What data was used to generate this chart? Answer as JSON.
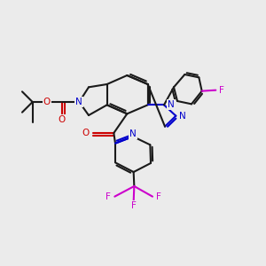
{
  "background_color": "#ebebeb",
  "bond_color": "#1a1a1a",
  "N_color": "#0000cc",
  "O_color": "#cc0000",
  "F_color": "#cc00cc",
  "figsize": [
    3.0,
    3.0
  ],
  "dpi": 100
}
